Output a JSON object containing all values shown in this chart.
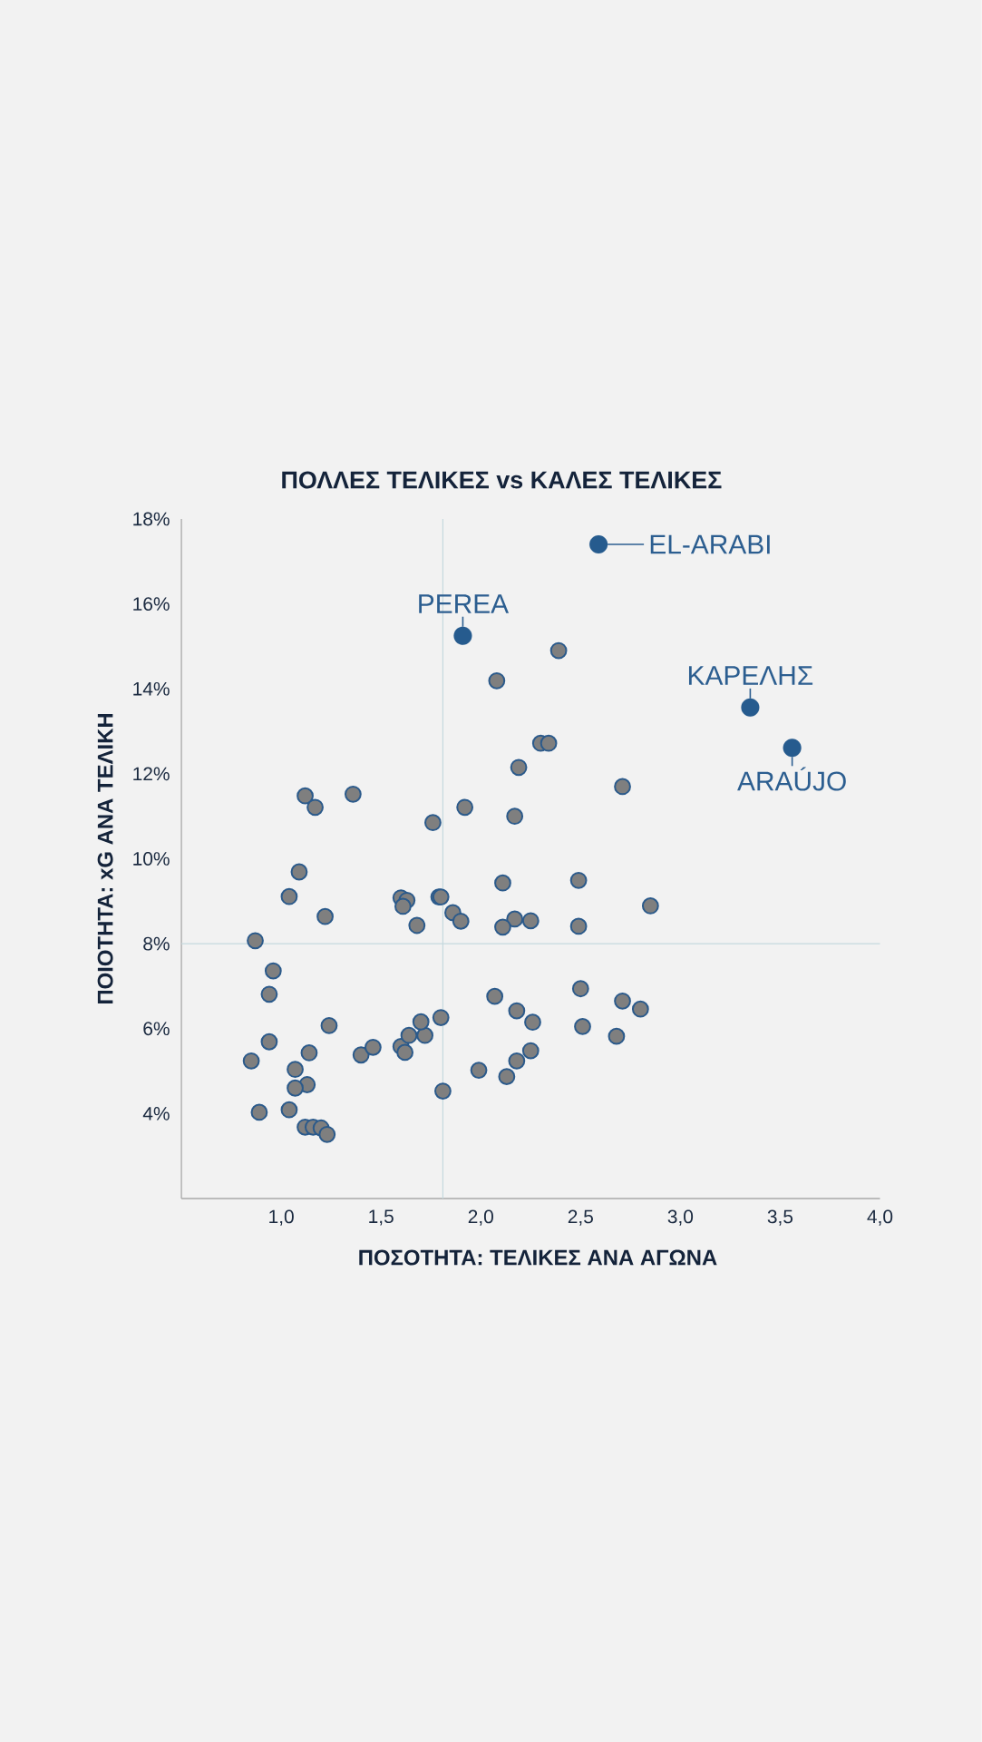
{
  "chart_data": {
    "type": "scatter",
    "title": "ΠΟΛΛΕΣ ΤΕΛΙΚΕΣ vs ΚΑΛΕΣ ΤΕΛΙΚΕΣ",
    "xlabel": "ΠΟΣΟΤΗΤΑ: ΤΕΛΙΚΕΣ ΑΝΑ ΑΓΩΝΑ",
    "ylabel": "ΠΟΙΟΤΗΤΑ: xG ΑΝΑ ΤΕΛΙΚΗ",
    "xlim": [
      0.5,
      4
    ],
    "ylim": [
      2,
      18
    ],
    "xticks": [
      {
        "value": 1,
        "label": "1,0"
      },
      {
        "value": 1.5,
        "label": "1,5"
      },
      {
        "value": 2,
        "label": "2,0"
      },
      {
        "value": 2.5,
        "label": "2,5"
      },
      {
        "value": 3,
        "label": "3,0"
      },
      {
        "value": 3.5,
        "label": "3,5"
      },
      {
        "value": 4,
        "label": "4,0"
      }
    ],
    "yticks": [
      {
        "value": 4,
        "label": "4%"
      },
      {
        "value": 6,
        "label": "6%"
      },
      {
        "value": 8,
        "label": "8%"
      },
      {
        "value": 10,
        "label": "10%"
      },
      {
        "value": 12,
        "label": "12%"
      },
      {
        "value": 14,
        "label": "14%"
      },
      {
        "value": 16,
        "label": "16%"
      },
      {
        "value": 18,
        "label": "18%"
      }
    ],
    "marker": "circle",
    "ref_lines": [
      {
        "axis": "x",
        "value": 1.81,
        "color": "#c5d9de"
      },
      {
        "axis": "y",
        "value": 8,
        "color": "#c5d9de"
      }
    ],
    "series": [
      {
        "color": "#7f7f7f",
        "x": [
          2.08,
          2.39,
          2.3,
          2.34,
          2.19,
          1.12,
          1.17,
          1.36,
          1.76,
          1.92,
          2.17,
          1.09,
          2.71,
          1.04,
          1.22,
          0.87,
          1.6,
          1.63,
          1.61,
          1.68,
          1.79,
          1.8,
          1.86,
          1.9,
          2.11,
          2.17,
          2.11,
          2.25,
          0.96,
          0.94,
          1.24,
          0.94,
          0.85,
          1.14,
          1.07,
          1.13,
          1.07,
          0.89,
          1.04,
          1.12,
          1.16,
          1.2,
          1.23,
          1.4,
          1.46,
          1.6,
          1.62,
          1.64,
          1.72,
          1.7,
          1.8,
          1.81,
          1.99,
          2.07,
          2.18,
          2.26,
          2.25,
          2.18,
          2.13,
          2.49,
          2.85,
          2.49,
          2.5,
          2.71,
          2.8,
          2.51,
          2.68
        ],
        "values": [
          14.19,
          14.9,
          12.72,
          12.72,
          12.15,
          11.48,
          11.21,
          11.52,
          10.85,
          11.21,
          11.0,
          9.69,
          11.7,
          9.11,
          8.64,
          8.07,
          9.08,
          9.02,
          8.88,
          8.43,
          9.1,
          9.1,
          8.73,
          8.53,
          9.43,
          8.58,
          8.39,
          8.54,
          7.36,
          6.81,
          6.07,
          5.69,
          5.24,
          5.43,
          5.04,
          4.68,
          4.6,
          4.03,
          4.09,
          3.68,
          3.68,
          3.66,
          3.51,
          5.38,
          5.56,
          5.58,
          5.44,
          5.84,
          5.84,
          6.16,
          6.26,
          4.53,
          5.02,
          6.76,
          6.42,
          6.15,
          5.48,
          5.24,
          4.87,
          9.49,
          8.89,
          8.41,
          6.94,
          6.65,
          6.46,
          6.05,
          5.82
        ]
      },
      {
        "color": "#265b8e",
        "x": [
          2.59,
          1.91,
          3.35,
          3.56
        ],
        "values": [
          17.4,
          15.25,
          13.56,
          12.61
        ]
      }
    ],
    "annotations": [
      {
        "text": "EL-ARABI",
        "x": 2.59,
        "y": 17.4
      },
      {
        "text": "PEREA",
        "x": 1.91,
        "y": 15.25
      },
      {
        "text": "ΚΑΡΕΛΗΣ",
        "x": 3.35,
        "y": 13.56
      },
      {
        "text": "ARAÚJO",
        "x": 3.56,
        "y": 12.61
      }
    ]
  }
}
